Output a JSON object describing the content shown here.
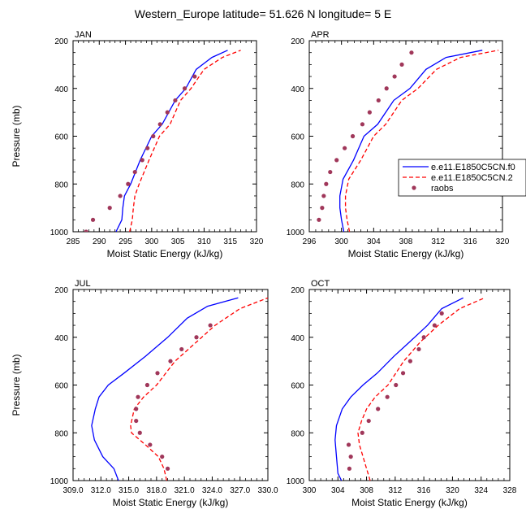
{
  "figure": {
    "title": "Western_Europe  latitude= 51.626 N longitude= 5 E"
  },
  "legend": {
    "entries": [
      {
        "label": "e.e11.E1850C5CN.f0",
        "style": "solid",
        "color": "#0000ff"
      },
      {
        "label": "e.e11.E1850C5CN.2",
        "style": "dashed",
        "color": "#ff0000"
      },
      {
        "label": "raobs",
        "style": "marker",
        "color": "#a0375a"
      }
    ]
  },
  "chart_data": [
    {
      "type": "line",
      "panel_label": "JAN",
      "xlabel": "Moist Static Energy (kJ/kg)",
      "ylabel": "Pressure (mb)",
      "xlim": [
        285,
        320
      ],
      "ylim": [
        1000,
        200
      ],
      "xticks": [
        "285",
        "290",
        "295",
        "300",
        "305",
        "310",
        "315",
        "320"
      ],
      "yticks": [
        "200",
        "400",
        "600",
        "800",
        "1000"
      ],
      "series": [
        {
          "name": "e.e11.E1850C5CN.f0",
          "color": "#0000ff",
          "style": "solid",
          "x": [
            293.2,
            294.3,
            294.5,
            294.8,
            296.0,
            297.8,
            300.0,
            302.0,
            304.5,
            306.5,
            308.5,
            311.5,
            314.5
          ],
          "y": [
            1000,
            950,
            900,
            850,
            800,
            700,
            600,
            550,
            450,
            400,
            320,
            270,
            240
          ]
        },
        {
          "name": "e.e11.E1850C5CN.2",
          "color": "#ff0000",
          "style": "dashed",
          "x": [
            295.8,
            296.3,
            296.5,
            296.8,
            297.6,
            299.5,
            301.5,
            303.5,
            305.5,
            307.5,
            310.0,
            313.5,
            317.0
          ],
          "y": [
            1000,
            950,
            900,
            850,
            800,
            700,
            600,
            550,
            450,
            400,
            320,
            270,
            240
          ]
        },
        {
          "name": "raobs",
          "color": "#a0375a",
          "style": "marker",
          "x": [
            287.5,
            288.8,
            292.0,
            294.0,
            295.5,
            296.8,
            298.2,
            299.2,
            300.3,
            301.6,
            303.0,
            304.5,
            306.3,
            308.2
          ],
          "y": [
            1000,
            950,
            900,
            850,
            800,
            750,
            700,
            650,
            600,
            550,
            500,
            450,
            400,
            350
          ]
        }
      ]
    },
    {
      "type": "line",
      "panel_label": "APR",
      "xlabel": "Moist Static Energy (kJ/kg)",
      "ylabel": "",
      "xlim": [
        296,
        320
      ],
      "ylim": [
        1000,
        200
      ],
      "xticks": [
        "296",
        "300",
        "304",
        "308",
        "312",
        "316",
        "320"
      ],
      "yticks": [
        "200",
        "400",
        "600",
        "800",
        "1000"
      ],
      "series": [
        {
          "name": "e.e11.E1850C5CN.f0",
          "color": "#0000ff",
          "style": "solid",
          "x": [
            300.3,
            300.0,
            299.8,
            299.8,
            300.2,
            301.5,
            302.8,
            304.5,
            306.5,
            308.5,
            310.5,
            313.0,
            317.5
          ],
          "y": [
            1000,
            950,
            900,
            850,
            780,
            700,
            600,
            550,
            450,
            400,
            320,
            270,
            240
          ]
        },
        {
          "name": "e.e11.E1850C5CN.2",
          "color": "#ff0000",
          "style": "dashed",
          "x": [
            301.0,
            300.7,
            300.5,
            300.5,
            300.9,
            302.4,
            304.0,
            305.5,
            307.5,
            309.5,
            311.8,
            314.8,
            319.5
          ],
          "y": [
            1000,
            950,
            900,
            850,
            780,
            700,
            600,
            550,
            450,
            400,
            320,
            270,
            240
          ]
        },
        {
          "name": "raobs",
          "color": "#a0375a",
          "style": "marker",
          "x": [
            297.2,
            297.6,
            297.8,
            298.1,
            298.6,
            299.4,
            300.4,
            301.4,
            302.6,
            303.5,
            304.6,
            305.6,
            306.6,
            307.5,
            308.7
          ],
          "y": [
            950,
            900,
            850,
            800,
            750,
            700,
            650,
            600,
            550,
            500,
            450,
            400,
            350,
            300,
            250
          ]
        }
      ]
    },
    {
      "type": "line",
      "panel_label": "JUL",
      "xlabel": "Moist Static Energy (kJ/kg)",
      "ylabel": "Pressure (mb)",
      "xlim": [
        309,
        330
      ],
      "ylim": [
        1000,
        200
      ],
      "xticks": [
        "309.0",
        "312.0",
        "315.0",
        "318.0",
        "321.0",
        "324.0",
        "327.0",
        "330.0"
      ],
      "yticks": [
        "200",
        "400",
        "600",
        "800",
        "1000"
      ],
      "series": [
        {
          "name": "e.e11.E1850C5CN.f0",
          "color": "#0000ff",
          "style": "solid",
          "x": [
            313.9,
            313.4,
            312.2,
            311.3,
            311.0,
            311.4,
            311.8,
            312.8,
            314.5,
            316.8,
            319.2,
            321.3,
            323.5,
            326.8
          ],
          "y": [
            1000,
            950,
            900,
            830,
            770,
            700,
            650,
            600,
            550,
            480,
            400,
            320,
            270,
            235
          ]
        },
        {
          "name": "e.e11.E1850C5CN.2",
          "color": "#ff0000",
          "style": "dashed",
          "x": [
            319.1,
            318.8,
            318.2,
            316.8,
            315.3,
            315.2,
            315.6,
            316.6,
            318.0,
            320.0,
            322.3,
            324.3,
            327.0,
            330.0
          ],
          "y": [
            1000,
            950,
            900,
            850,
            800,
            770,
            700,
            650,
            600,
            500,
            420,
            350,
            280,
            235
          ]
        },
        {
          "name": "raobs",
          "color": "#a0375a",
          "style": "marker",
          "x": [
            319.2,
            318.6,
            317.3,
            316.2,
            315.8,
            315.8,
            316.0,
            317.0,
            318.1,
            319.5,
            320.7,
            322.3,
            323.8
          ],
          "y": [
            950,
            900,
            850,
            800,
            750,
            700,
            650,
            600,
            550,
            500,
            450,
            400,
            350
          ]
        }
      ]
    },
    {
      "type": "line",
      "panel_label": "OCT",
      "xlabel": "Moist Static Energy (kJ/kg)",
      "ylabel": "",
      "xlim": [
        300,
        328
      ],
      "ylim": [
        1000,
        200
      ],
      "xticks": [
        "300",
        "304",
        "308",
        "312",
        "316",
        "320",
        "324",
        "328"
      ],
      "yticks": [
        "200",
        "400",
        "600",
        "800",
        "1000"
      ],
      "series": [
        {
          "name": "e.e11.E1850C5CN.f0",
          "color": "#0000ff",
          "style": "solid",
          "x": [
            304.5,
            304.0,
            303.8,
            303.6,
            303.8,
            304.6,
            305.8,
            307.5,
            309.5,
            311.8,
            314.0,
            316.5,
            318.5,
            321.5
          ],
          "y": [
            1000,
            970,
            900,
            830,
            770,
            700,
            650,
            600,
            550,
            480,
            420,
            350,
            280,
            235
          ]
        },
        {
          "name": "e.e11.E1850C5CN.2",
          "color": "#ff0000",
          "style": "dashed",
          "x": [
            308.5,
            308.0,
            307.5,
            307.0,
            306.8,
            307.3,
            308.0,
            309.2,
            311.0,
            313.2,
            315.5,
            318.0,
            321.0,
            324.5
          ],
          "y": [
            1000,
            950,
            900,
            850,
            800,
            750,
            700,
            650,
            600,
            500,
            420,
            350,
            280,
            235
          ]
        },
        {
          "name": "raobs",
          "color": "#a0375a",
          "style": "marker",
          "x": [
            305.6,
            305.8,
            305.5,
            307.4,
            308.3,
            309.6,
            310.9,
            312.1,
            313.1,
            314.1,
            315.3,
            316.0,
            317.5,
            318.5
          ],
          "y": [
            950,
            900,
            850,
            800,
            750,
            700,
            650,
            600,
            550,
            500,
            450,
            400,
            350,
            300
          ]
        }
      ]
    }
  ]
}
